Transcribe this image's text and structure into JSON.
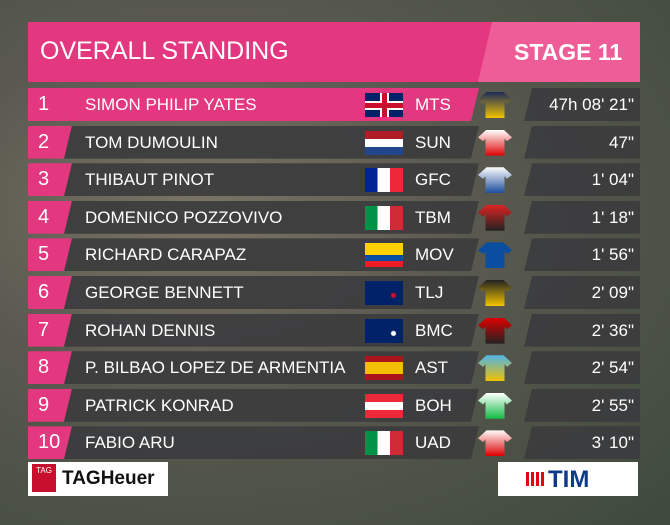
{
  "header": {
    "title": "OVERALL STANDING",
    "stage": "STAGE 11"
  },
  "rows": [
    {
      "rank": "1",
      "name": "SIMON PHILIP YATES",
      "team": "MTS",
      "time": "47h 08' 21\""
    },
    {
      "rank": "2",
      "name": "TOM DUMOULIN",
      "team": "SUN",
      "time": "47\""
    },
    {
      "rank": "3",
      "name": "THIBAUT PINOT",
      "team": "GFC",
      "time": "1' 04\""
    },
    {
      "rank": "4",
      "name": "DOMENICO POZZOVIVO",
      "team": "TBM",
      "time": "1' 18\""
    },
    {
      "rank": "5",
      "name": "RICHARD CARAPAZ",
      "team": "MOV",
      "time": "1' 56\""
    },
    {
      "rank": "6",
      "name": "GEORGE BENNETT",
      "team": "TLJ",
      "time": "2' 09\""
    },
    {
      "rank": "7",
      "name": "ROHAN DENNIS",
      "team": "BMC",
      "time": "2' 36\""
    },
    {
      "rank": "8",
      "name": "P. BILBAO LOPEZ DE ARMENTIA",
      "team": "AST",
      "time": "2' 54\""
    },
    {
      "rank": "9",
      "name": "PATRICK KONRAD",
      "team": "BOH",
      "time": "2' 55\""
    },
    {
      "rank": "10",
      "name": "FABIO ARU",
      "team": "UAD",
      "time": "3' 10\""
    }
  ],
  "sponsors": {
    "left_badge": "TAG",
    "left": "TAGHeuer",
    "right": "TIM"
  }
}
